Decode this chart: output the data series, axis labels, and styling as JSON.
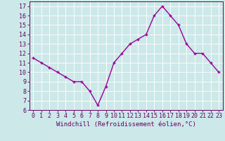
{
  "x": [
    0,
    1,
    2,
    3,
    4,
    5,
    6,
    7,
    8,
    9,
    10,
    11,
    12,
    13,
    14,
    15,
    16,
    17,
    18,
    19,
    20,
    21,
    22,
    23
  ],
  "y": [
    11.5,
    11.0,
    10.5,
    10.0,
    9.5,
    9.0,
    9.0,
    8.0,
    6.5,
    8.5,
    11.0,
    12.0,
    13.0,
    13.5,
    14.0,
    16.0,
    17.0,
    16.0,
    15.0,
    13.0,
    12.0,
    12.0,
    11.0,
    10.0
  ],
  "line_color": "#990099",
  "marker": "+",
  "bg_color": "#cce8e8",
  "grid_color": "#ffffff",
  "xlabel": "Windchill (Refroidissement éolien,°C)",
  "xlabel_color": "#660066",
  "tick_color": "#660066",
  "axis_color": "#660066",
  "ylim_min": 6,
  "ylim_max": 17.5,
  "yticks": [
    6,
    7,
    8,
    9,
    10,
    11,
    12,
    13,
    14,
    15,
    16,
    17
  ],
  "xlim_min": -0.5,
  "xlim_max": 23.5,
  "xticks": [
    0,
    1,
    2,
    3,
    4,
    5,
    6,
    7,
    8,
    9,
    10,
    11,
    12,
    13,
    14,
    15,
    16,
    17,
    18,
    19,
    20,
    21,
    22,
    23
  ],
  "xlabel_fontsize": 6.5,
  "tick_fontsize": 6.0,
  "line_width": 1.0,
  "marker_size": 3.5,
  "marker_edge_width": 1.0
}
